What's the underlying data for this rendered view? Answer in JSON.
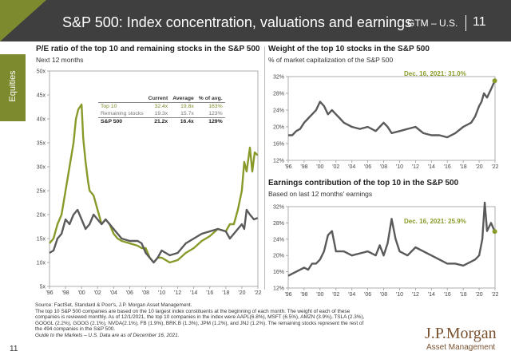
{
  "header": {
    "title": "S&P 500: Index concentration, valuations and earnings",
    "region": "GTM – U.S.",
    "page": "11"
  },
  "side_tab": "Equities",
  "footnote": {
    "source": "Source: FactSet, Standard & Poor's, J.P. Morgan Asset Management.",
    "lines": [
      "The top 10 S&P 500 companies are based on the 10 largest index constituents at the beginning of each month. The weight of each of these",
      "companies is reviewed monthly. As of 12/1/2021, the top 10 companies in the index were AAPL(6.8%), MSFT (6.5%), AMZN (3.9%), TSLA (2.3%),",
      "GOOGL (2.2%), GOOG (2.1%), NVDA(2.1%), FB (1.9%), BRK.B (1.3%), JPM (1.2%), and JNJ (1.2%). The remaining stocks represent the rest of",
      "the 494 companies in the S&P 500."
    ],
    "guide": "Guide to the Markets – U.S. Data are as of December 16, 2021."
  },
  "page_number": "11",
  "logo": {
    "name": "J.P.Morgan",
    "sub": "Asset Management"
  },
  "colors": {
    "green": "#8a9a2a",
    "gray": "#5a5a5a",
    "header": "#3f3f3f",
    "accent": "#7d8a2e"
  },
  "pe_table": {
    "headers": [
      "",
      "Current",
      "Average",
      "% of avg."
    ],
    "rows": [
      [
        "Top 10",
        "32.4x",
        "19.8x",
        "163%"
      ],
      [
        "Remaining stocks",
        "19.3x",
        "15.7x",
        "123%"
      ],
      [
        "S&P 500",
        "21.2x",
        "16.4x",
        "129%"
      ]
    ]
  },
  "chart_data": [
    {
      "type": "line",
      "title": "P/E ratio of the top 10 and remaining stocks in the S&P 500",
      "subtitle": "Next 12 months",
      "xlabel": "",
      "ylabel": "",
      "x_ticks": [
        "'96",
        "'98",
        "'00",
        "'02",
        "'04",
        "'06",
        "'08",
        "'10",
        "'12",
        "'14",
        "'16",
        "'18",
        "'20",
        "'22"
      ],
      "xlim": [
        1996,
        2022
      ],
      "y_ticks": [
        "5x",
        "10x",
        "15x",
        "20x",
        "25x",
        "30x",
        "35x",
        "40x",
        "45x",
        "50x"
      ],
      "ylim": [
        5,
        50
      ],
      "series": [
        {
          "name": "Top 10",
          "color": "#8a9a2a",
          "x": [
            1996,
            1996.5,
            1997,
            1997.5,
            1998,
            1998.5,
            1999,
            1999.3,
            1999.6,
            2000,
            2000.2,
            2000.5,
            2000.8,
            2001,
            2001.5,
            2002,
            2002.5,
            2003,
            2003.5,
            2004,
            2004.5,
            2005,
            2006,
            2007,
            2007.5,
            2008,
            2008.5,
            2009,
            2009.5,
            2010,
            2011,
            2012,
            2013,
            2014,
            2015,
            2016,
            2017,
            2018,
            2018.5,
            2019,
            2019.5,
            2020,
            2020.3,
            2020.6,
            2021,
            2021.3,
            2021.6,
            2021.96
          ],
          "y": [
            14,
            15,
            18,
            20,
            25,
            30,
            35,
            40,
            42,
            43,
            36,
            31,
            27,
            25,
            24,
            21,
            18,
            19,
            18,
            16,
            15,
            14.5,
            14,
            13.5,
            13,
            13,
            11,
            10,
            11,
            11,
            10,
            10.5,
            12,
            13,
            14.5,
            15.5,
            17,
            16.5,
            18,
            18,
            21,
            25,
            31,
            29,
            34,
            29,
            33,
            32.4
          ]
        },
        {
          "name": "Remaining stocks",
          "color": "#5a5a5a",
          "x": [
            1996,
            1996.5,
            1997,
            1997.5,
            1998,
            1998.5,
            1999,
            1999.5,
            2000,
            2000.5,
            2001,
            2001.5,
            2002,
            2002.5,
            2003,
            2003.5,
            2004,
            2004.5,
            2005,
            2006,
            2007,
            2007.5,
            2008,
            2008.5,
            2009,
            2009.5,
            2010,
            2011,
            2012,
            2013,
            2014,
            2015,
            2016,
            2017,
            2018,
            2018.5,
            2019,
            2019.5,
            2020,
            2020.3,
            2020.6,
            2021,
            2021.5,
            2021.96
          ],
          "y": [
            12,
            12.5,
            15,
            16,
            19,
            18,
            20,
            21,
            19,
            17,
            18,
            20,
            19,
            18,
            19,
            18,
            17,
            16,
            15,
            14.5,
            14.5,
            14,
            12,
            11,
            10,
            11,
            12.5,
            11.5,
            12,
            14,
            15,
            16,
            16.5,
            17,
            16.5,
            15,
            16,
            17,
            18,
            17,
            21,
            20,
            19,
            19.3
          ]
        }
      ]
    },
    {
      "type": "line",
      "title": "Weight of the top 10 stocks in the S&P 500",
      "subtitle": "% of market capitalization of the S&P 500",
      "annotation": "Dec. 16, 2021: 31.0%",
      "xlabel": "",
      "ylabel": "",
      "x_ticks": [
        "'96",
        "'98",
        "'00",
        "'02",
        "'04",
        "'06",
        "'08",
        "'10",
        "'12",
        "'14",
        "'16",
        "'18",
        "'20",
        "'22"
      ],
      "xlim": [
        1996,
        2022
      ],
      "y_ticks": [
        "12%",
        "16%",
        "20%",
        "24%",
        "28%",
        "32%"
      ],
      "ylim": [
        12,
        32
      ],
      "series": [
        {
          "name": "Top 10 weight",
          "color": "#5a5a5a",
          "x": [
            1996,
            1996.5,
            1997,
            1997.5,
            1998,
            1998.5,
            1999,
            1999.5,
            2000,
            2000.5,
            2001,
            2001.5,
            2002,
            2002.5,
            2003,
            2004,
            2005,
            2006,
            2007,
            2007.5,
            2008,
            2008.5,
            2009,
            2010,
            2011,
            2012,
            2013,
            2014,
            2015,
            2016,
            2017,
            2018,
            2019,
            2019.5,
            2020,
            2020.3,
            2020.6,
            2021,
            2021.5,
            2021.96
          ],
          "y": [
            18,
            18,
            19,
            19.5,
            21,
            22,
            23,
            24,
            26,
            25,
            23,
            24,
            23,
            22,
            21,
            20,
            19.5,
            20,
            19,
            20,
            21,
            20,
            18.5,
            19,
            19.5,
            20,
            18.5,
            18,
            18,
            17.5,
            18.5,
            20,
            21,
            22.5,
            25,
            26,
            28,
            27,
            29,
            31
          ]
        }
      ]
    },
    {
      "type": "line",
      "title": "Earnings contribution of the top 10 in the S&P 500",
      "subtitle": "Based on last 12 months' earnings",
      "annotation": "Dec. 16, 2021: 25.9%",
      "xlabel": "",
      "ylabel": "",
      "x_ticks": [
        "'96",
        "'98",
        "'00",
        "'02",
        "'04",
        "'06",
        "'08",
        "'10",
        "'12",
        "'14",
        "'16",
        "'18",
        "'20",
        "'22"
      ],
      "xlim": [
        1996,
        2022
      ],
      "y_ticks": [
        "12%",
        "16%",
        "20%",
        "24%",
        "28%",
        "32%"
      ],
      "ylim": [
        12,
        32
      ],
      "series": [
        {
          "name": "Top 10 earnings contribution",
          "color": "#5a5a5a",
          "x": [
            1996,
            1996.5,
            1997,
            1998,
            1998.5,
            1999,
            1999.5,
            2000,
            2000.5,
            2001,
            2001.5,
            2002,
            2003,
            2004,
            2005,
            2006,
            2007,
            2007.5,
            2008,
            2008.5,
            2009,
            2009.5,
            2010,
            2011,
            2012,
            2013,
            2014,
            2015,
            2016,
            2017,
            2018,
            2019,
            2019.5,
            2020,
            2020.4,
            2020.7,
            2021,
            2021.5,
            2021.96
          ],
          "y": [
            15,
            15.5,
            16,
            17,
            16.5,
            18,
            18,
            19,
            21,
            25,
            26,
            21,
            21,
            20,
            20.5,
            21,
            20,
            22.5,
            20,
            23,
            29,
            24,
            21,
            20,
            22,
            21,
            20,
            19,
            18,
            18,
            17.5,
            18.5,
            19,
            20,
            24,
            33,
            26,
            28,
            25.9
          ]
        }
      ]
    }
  ]
}
